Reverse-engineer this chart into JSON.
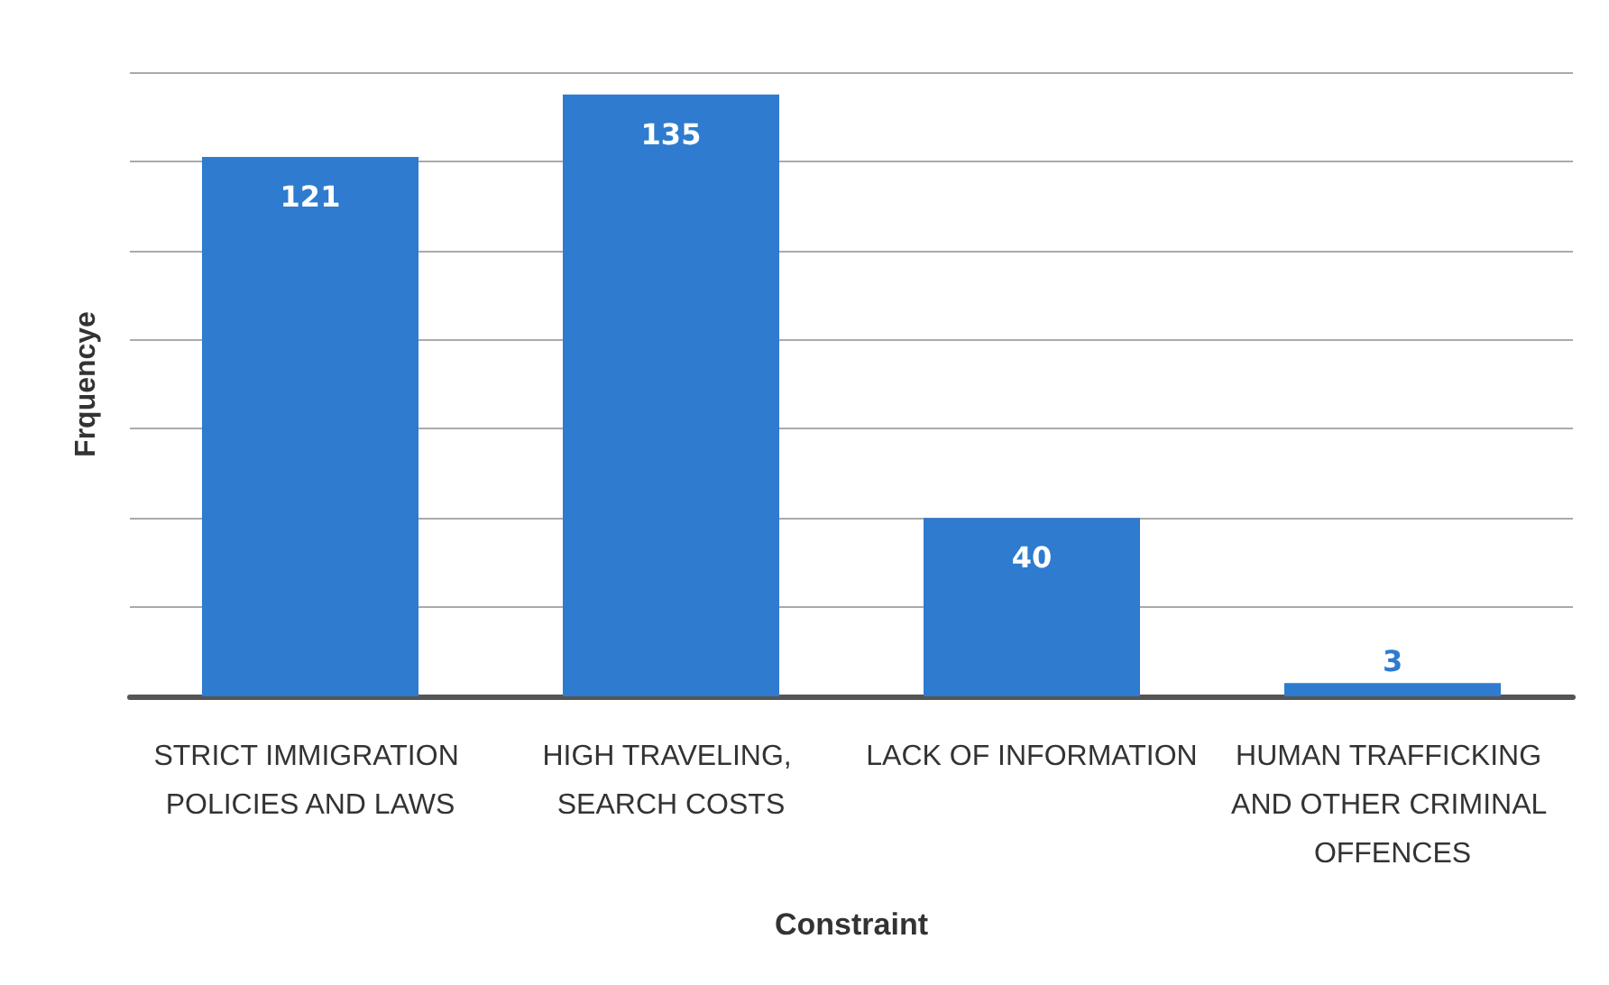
{
  "chart_data": {
    "type": "bar",
    "xlabel": "Constraint",
    "ylabel": "Frquencye",
    "categories": [
      "STRICT IMMIGRATION POLICIES AND LAWS",
      "HIGH TRAVELING, SEARCH COSTS",
      "LACK OF INFORMATION",
      "HUMAN TRAFFICKING AND OTHER CRIMINAL OFFENCES"
    ],
    "values": [
      121,
      135,
      40,
      3
    ],
    "color": "#2e7bcf",
    "ylim": [
      0,
      140
    ],
    "yticks": [
      {
        "value": 0,
        "label": null
      },
      {
        "value": 20,
        "label": null
      },
      {
        "value": 40,
        "label": null
      },
      {
        "value": 60,
        "label": null
      },
      {
        "value": 80,
        "label": null
      },
      {
        "value": 100,
        "label": null
      },
      {
        "value": 120,
        "label": null
      },
      {
        "value": 140,
        "label": null
      }
    ],
    "tick_labels": "x",
    "grid": "y",
    "data_labels": true
  }
}
